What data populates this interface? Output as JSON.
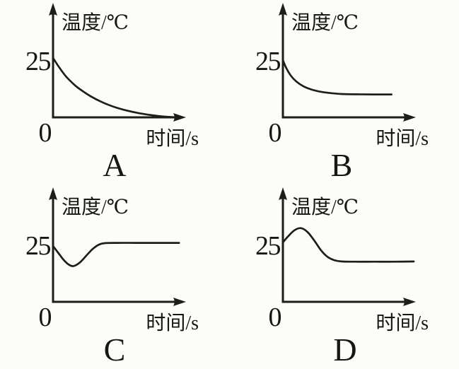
{
  "figure": {
    "background_color": "#fcfcfa",
    "line_color": "#1d1d1b"
  },
  "chart_data": [
    {
      "option_label": "A",
      "type": "line",
      "ylabel": "温度/℃",
      "xlabel": "时间/s",
      "y_tick_label": "25",
      "y_tick_value": 25,
      "origin_label": "0",
      "xlim_s": [
        0,
        10
      ],
      "ylim_c": [
        0,
        35
      ],
      "grid": false,
      "points_s_c": [
        [
          0,
          25
        ],
        [
          0.5,
          21
        ],
        [
          1,
          17.5
        ],
        [
          1.5,
          14.8
        ],
        [
          2,
          12.5
        ],
        [
          3,
          9
        ],
        [
          4,
          6.3
        ],
        [
          5,
          4.3
        ],
        [
          6,
          2.8
        ],
        [
          7,
          1.7
        ],
        [
          8,
          0.9
        ],
        [
          9,
          0.3
        ],
        [
          10,
          0
        ]
      ]
    },
    {
      "option_label": "B",
      "type": "line",
      "ylabel": "温度/℃",
      "xlabel": "时间/s",
      "y_tick_label": "25",
      "y_tick_value": 25,
      "origin_label": "0",
      "xlim_s": [
        0,
        10
      ],
      "ylim_c": [
        0,
        35
      ],
      "grid": false,
      "points_s_c": [
        [
          0,
          25
        ],
        [
          0.3,
          21.5
        ],
        [
          0.7,
          18.2
        ],
        [
          1.2,
          15.6
        ],
        [
          1.8,
          13.6
        ],
        [
          2.5,
          12.2
        ],
        [
          3.3,
          11.2
        ],
        [
          4.2,
          10.6
        ],
        [
          5.2,
          10.2
        ],
        [
          6.5,
          10.05
        ],
        [
          8,
          10
        ],
        [
          9.6,
          10
        ]
      ]
    },
    {
      "option_label": "C",
      "type": "line",
      "ylabel": "温度/℃",
      "xlabel": "时间/s",
      "y_tick_label": "25",
      "y_tick_value": 25,
      "origin_label": "0",
      "xlim_s": [
        0,
        10
      ],
      "ylim_c": [
        0,
        35
      ],
      "grid": false,
      "points_s_c": [
        [
          0,
          25
        ],
        [
          0.4,
          22
        ],
        [
          0.8,
          19
        ],
        [
          1.2,
          16.8
        ],
        [
          1.6,
          16
        ],
        [
          2.1,
          17.6
        ],
        [
          2.6,
          20.6
        ],
        [
          3.1,
          23.6
        ],
        [
          3.6,
          25.6
        ],
        [
          4.1,
          26.3
        ],
        [
          5,
          26.4
        ],
        [
          6.5,
          26.4
        ],
        [
          8,
          26.4
        ],
        [
          9.9,
          26.4
        ]
      ]
    },
    {
      "option_label": "D",
      "type": "line",
      "ylabel": "温度/℃",
      "xlabel": "时间/s",
      "y_tick_label": "25",
      "y_tick_value": 25,
      "origin_label": "0",
      "xlim_s": [
        0,
        10
      ],
      "ylim_c": [
        0,
        35
      ],
      "grid": false,
      "points_s_c": [
        [
          0,
          25
        ],
        [
          0.4,
          27.6
        ],
        [
          0.9,
          30.2
        ],
        [
          1.4,
          31
        ],
        [
          1.9,
          29.3
        ],
        [
          2.4,
          25.8
        ],
        [
          2.9,
          21.8
        ],
        [
          3.4,
          19
        ],
        [
          3.9,
          17.6
        ],
        [
          4.5,
          17
        ],
        [
          5.5,
          16.9
        ],
        [
          7,
          16.9
        ],
        [
          8.5,
          16.9
        ],
        [
          10,
          17
        ]
      ]
    }
  ]
}
